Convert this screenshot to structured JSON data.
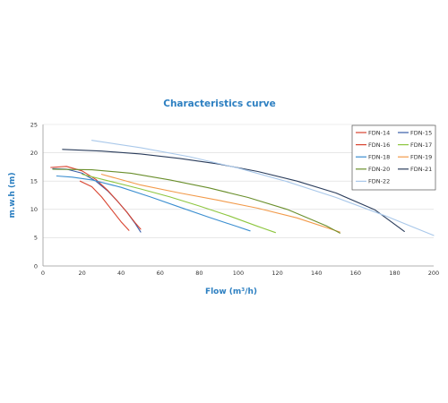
{
  "chart_data": {
    "type": "line",
    "title": "Characteristics curve",
    "xlabel": "Flow (m³/h)",
    "ylabel": "m.w.h (m)",
    "xlim": [
      0,
      200
    ],
    "ylim": [
      0,
      25
    ],
    "xticks": [
      "0",
      "20",
      "40",
      "60",
      "80",
      "100",
      "120",
      "140",
      "160",
      "180",
      "200"
    ],
    "yticks": [
      "0",
      "5",
      "10",
      "15",
      "20",
      "25"
    ],
    "grid": "horizontal",
    "legend_position": "top-right",
    "series": [
      {
        "name": "FDN-14",
        "color": "#d9432f",
        "x": [
          19,
          25,
          30,
          35,
          40,
          44
        ],
        "y": [
          15,
          14,
          12.2,
          10,
          7.8,
          6.3
        ]
      },
      {
        "name": "FDN-15",
        "color": "#3a5da8",
        "x": [
          5,
          12,
          20,
          27,
          33,
          38,
          43,
          47,
          50
        ],
        "y": [
          17.2,
          17.1,
          16.4,
          15,
          13.3,
          11.5,
          9.5,
          7.6,
          6
        ]
      },
      {
        "name": "FDN-16",
        "color": "#d9432f",
        "x": [
          4,
          12,
          20,
          27,
          33,
          38,
          43,
          47,
          50
        ],
        "y": [
          17.4,
          17.6,
          16.8,
          15.3,
          13.4,
          11.5,
          9.5,
          7.7,
          6.5
        ]
      },
      {
        "name": "FDN-17",
        "color": "#8dc63f",
        "x": [
          20,
          35,
          50,
          65,
          80,
          95,
          110,
          119
        ],
        "y": [
          16.2,
          14.9,
          13.6,
          12.2,
          10.6,
          8.9,
          7,
          5.9
        ]
      },
      {
        "name": "FDN-18",
        "color": "#3b8ed0",
        "x": [
          7,
          15,
          25,
          40,
          55,
          70,
          85,
          100,
          106
        ],
        "y": [
          15.9,
          15.7,
          15.2,
          13.9,
          12.2,
          10.4,
          8.6,
          6.9,
          6.2
        ]
      },
      {
        "name": "FDN-19",
        "color": "#f29a4a",
        "x": [
          30,
          50,
          70,
          90,
          110,
          130,
          152
        ],
        "y": [
          16.2,
          14.3,
          12.9,
          11.6,
          10.2,
          8.5,
          6
        ]
      },
      {
        "name": "FDN-20",
        "color": "#6a8f2c",
        "x": [
          5,
          25,
          45,
          65,
          85,
          105,
          125,
          145,
          152
        ],
        "y": [
          17.1,
          17,
          16.4,
          15.2,
          13.8,
          12.1,
          10,
          7.1,
          5.8
        ]
      },
      {
        "name": "FDN-21",
        "color": "#2b3d5c",
        "x": [
          10,
          30,
          50,
          70,
          90,
          110,
          130,
          150,
          170,
          185
        ],
        "y": [
          20.6,
          20.3,
          19.8,
          19,
          18,
          16.7,
          15,
          12.9,
          9.9,
          6.1
        ]
      },
      {
        "name": "FDN-22",
        "color": "#a9c8ea",
        "x": [
          25,
          50,
          75,
          100,
          125,
          150,
          175,
          200
        ],
        "y": [
          22.2,
          20.9,
          19.3,
          17.3,
          14.9,
          12.1,
          8.9,
          5.4
        ]
      }
    ]
  }
}
